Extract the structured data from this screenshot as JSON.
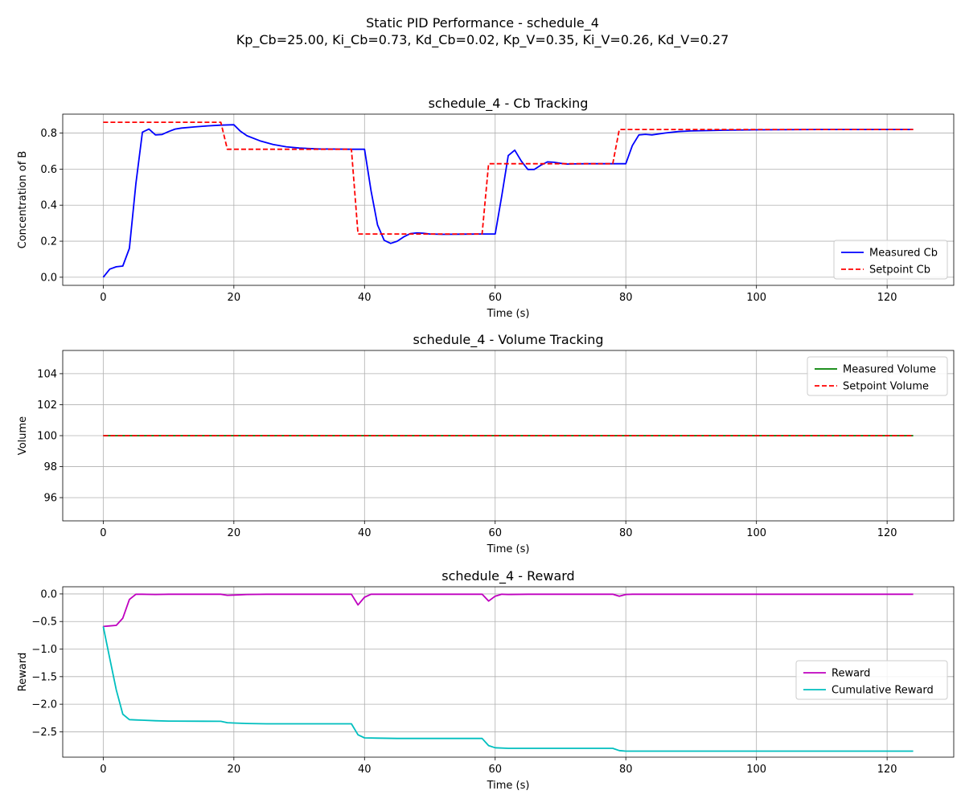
{
  "figure": {
    "title_line1": "Static PID Performance - schedule_4",
    "title_line2": "Kp_Cb=25.00, Ki_Cb=0.73, Kd_Cb=0.02, Kp_V=0.35, Ki_V=0.26, Kd_V=0.27"
  },
  "chart_data": [
    {
      "type": "line",
      "title": "schedule_4 - Cb Tracking",
      "xlabel": "Time (s)",
      "ylabel": "Concentration of B",
      "xlim": [
        -6.2,
        130.2
      ],
      "ylim": [
        -0.045,
        0.905
      ],
      "xticks": [
        0,
        20,
        40,
        60,
        80,
        100,
        120
      ],
      "yticks": [
        0.0,
        0.2,
        0.4,
        0.6,
        0.8
      ],
      "ytick_labels": [
        "0.0",
        "0.2",
        "0.4",
        "0.6",
        "0.8"
      ],
      "grid": true,
      "legend_position": "lower right",
      "series": [
        {
          "name": "Measured Cb",
          "color": "#0000ff",
          "style": "solid",
          "x": [
            0,
            1,
            2,
            3,
            4,
            5,
            6,
            7,
            8,
            9,
            10,
            11,
            12,
            14,
            16,
            18,
            20,
            21,
            22,
            24,
            26,
            28,
            30,
            33,
            36,
            38,
            40,
            41,
            42,
            43,
            44,
            45,
            46,
            47,
            48,
            49,
            50,
            52,
            55,
            58,
            60,
            61,
            62,
            63,
            64,
            65,
            66,
            67,
            68,
            69,
            70,
            71,
            72,
            74,
            76,
            78,
            80,
            81,
            82,
            83,
            84,
            86,
            88,
            90,
            95,
            100,
            110,
            124
          ],
          "y": [
            0.0,
            0.045,
            0.058,
            0.062,
            0.16,
            0.52,
            0.805,
            0.822,
            0.79,
            0.792,
            0.808,
            0.822,
            0.828,
            0.834,
            0.84,
            0.844,
            0.846,
            0.81,
            0.785,
            0.757,
            0.737,
            0.724,
            0.717,
            0.712,
            0.711,
            0.71,
            0.71,
            0.48,
            0.29,
            0.205,
            0.188,
            0.2,
            0.224,
            0.242,
            0.246,
            0.244,
            0.24,
            0.238,
            0.239,
            0.24,
            0.24,
            0.45,
            0.675,
            0.705,
            0.645,
            0.598,
            0.598,
            0.622,
            0.64,
            0.638,
            0.632,
            0.628,
            0.629,
            0.63,
            0.63,
            0.63,
            0.63,
            0.73,
            0.79,
            0.793,
            0.79,
            0.8,
            0.808,
            0.812,
            0.816,
            0.818,
            0.82,
            0.82
          ]
        },
        {
          "name": "Setpoint Cb",
          "color": "#ff0000",
          "style": "dashed",
          "x": [
            0,
            18,
            19,
            38,
            39,
            58,
            59,
            78,
            79,
            124
          ],
          "y": [
            0.86,
            0.86,
            0.71,
            0.71,
            0.24,
            0.24,
            0.63,
            0.63,
            0.82,
            0.82
          ]
        }
      ]
    },
    {
      "type": "line",
      "title": "schedule_4 - Volume Tracking",
      "xlabel": "Time (s)",
      "ylabel": "Volume",
      "xlim": [
        -6.2,
        130.2
      ],
      "ylim": [
        94.5,
        105.5
      ],
      "xticks": [
        0,
        20,
        40,
        60,
        80,
        100,
        120
      ],
      "yticks": [
        96,
        98,
        100,
        102,
        104
      ],
      "ytick_labels": [
        "96",
        "98",
        "100",
        "102",
        "104"
      ],
      "grid": true,
      "legend_position": "upper right",
      "series": [
        {
          "name": "Measured Volume",
          "color": "#008000",
          "style": "solid",
          "x": [
            0,
            124
          ],
          "y": [
            100,
            100
          ]
        },
        {
          "name": "Setpoint Volume",
          "color": "#ff0000",
          "style": "dashed",
          "x": [
            0,
            124
          ],
          "y": [
            100,
            100
          ]
        }
      ]
    },
    {
      "type": "line",
      "title": "schedule_4 - Reward",
      "xlabel": "Time (s)",
      "ylabel": "Reward",
      "xlim": [
        -6.2,
        130.2
      ],
      "ylim": [
        -2.96,
        0.13
      ],
      "xticks": [
        0,
        20,
        40,
        60,
        80,
        100,
        120
      ],
      "yticks": [
        0.0,
        -0.5,
        -1.0,
        -1.5,
        -2.0,
        -2.5
      ],
      "ytick_labels": [
        "0.0",
        "−0.5",
        "−1.0",
        "−1.5",
        "−2.0",
        "−2.5"
      ],
      "grid": true,
      "legend_position": "center right",
      "series": [
        {
          "name": "Reward",
          "color": "#bf00bf",
          "style": "solid",
          "x": [
            0,
            1,
            2,
            3,
            4,
            5,
            6,
            8,
            10,
            18,
            19,
            20,
            22,
            25,
            30,
            38,
            39,
            40,
            41,
            42,
            45,
            50,
            58,
            59,
            60,
            61,
            62,
            65,
            70,
            78,
            79,
            80,
            81,
            85,
            124
          ],
          "y": [
            -0.59,
            -0.58,
            -0.57,
            -0.44,
            -0.1,
            -0.005,
            -0.005,
            -0.01,
            -0.005,
            -0.005,
            -0.025,
            -0.02,
            -0.01,
            -0.005,
            -0.005,
            -0.005,
            -0.2,
            -0.06,
            -0.005,
            -0.005,
            -0.005,
            -0.005,
            -0.005,
            -0.13,
            -0.04,
            -0.005,
            -0.01,
            -0.005,
            -0.005,
            -0.005,
            -0.04,
            -0.01,
            -0.005,
            -0.005,
            -0.005
          ]
        },
        {
          "name": "Cumulative Reward",
          "color": "#00bfbf",
          "style": "solid",
          "x": [
            0,
            1,
            2,
            3,
            4,
            5,
            6,
            8,
            10,
            18,
            19,
            20,
            22,
            25,
            30,
            38,
            39,
            40,
            42,
            45,
            50,
            58,
            59,
            60,
            62,
            65,
            70,
            78,
            79,
            80,
            85,
            124
          ],
          "y": [
            -0.59,
            -1.17,
            -1.74,
            -2.18,
            -2.28,
            -2.285,
            -2.29,
            -2.3,
            -2.305,
            -2.31,
            -2.335,
            -2.34,
            -2.35,
            -2.355,
            -2.355,
            -2.355,
            -2.555,
            -2.61,
            -2.615,
            -2.62,
            -2.62,
            -2.62,
            -2.75,
            -2.79,
            -2.8,
            -2.8,
            -2.8,
            -2.8,
            -2.84,
            -2.85,
            -2.85,
            -2.85
          ]
        }
      ]
    }
  ]
}
